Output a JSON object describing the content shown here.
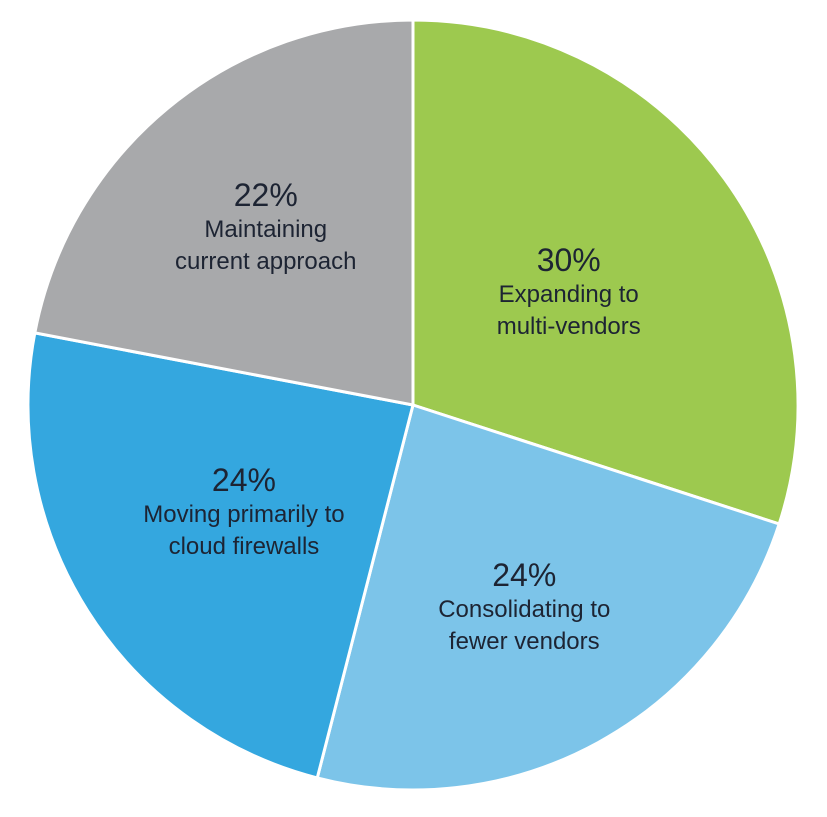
{
  "chart_data": {
    "type": "pie",
    "categories": [
      "Expanding to multi-vendors",
      "Consolidating to fewer vendors",
      "Moving primarily to cloud firewalls",
      "Maintaining current approach"
    ],
    "values": [
      30,
      24,
      24,
      22
    ],
    "value_labels": [
      "30%",
      "24%",
      "24%",
      "22%"
    ],
    "colors": [
      "#9dc94f",
      "#7cc4e9",
      "#34a7df",
      "#a8a9ab"
    ]
  }
}
